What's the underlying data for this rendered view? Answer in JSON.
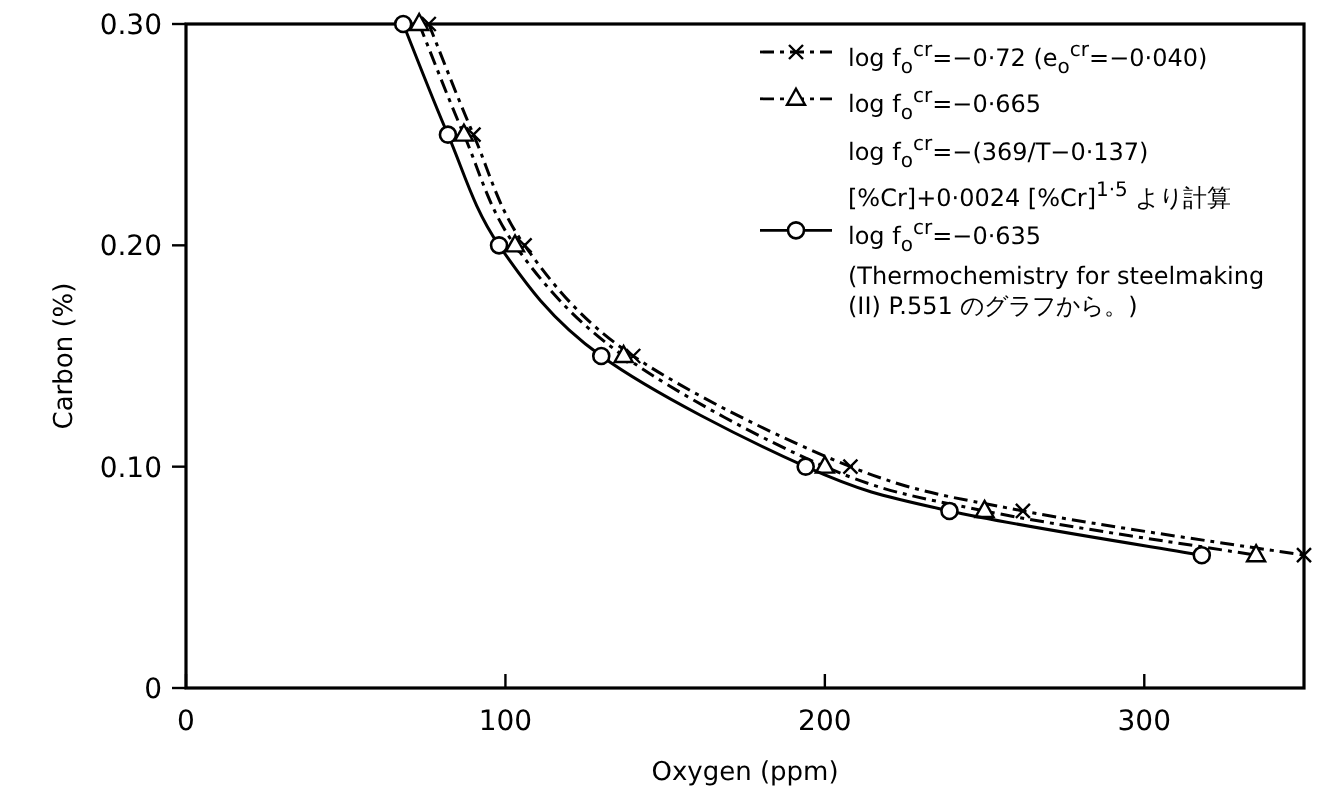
{
  "chart_data": {
    "type": "line",
    "xlabel": "Oxygen (ppm)",
    "ylabel": "Carbon (%)",
    "xlim": [
      0,
      350
    ],
    "ylim": [
      0,
      0.3
    ],
    "xticks": [
      0,
      100,
      200,
      300
    ],
    "yticks": [
      {
        "value": 0,
        "label": "0"
      },
      {
        "value": 0.1,
        "label": "0.10"
      },
      {
        "value": 0.2,
        "label": "0.20"
      },
      {
        "value": 0.3,
        "label": "0.30"
      }
    ],
    "legend": "top right",
    "grid": false,
    "series": [
      {
        "name": "log f$_{o}$$^{cr}$=−0·72 (e$_{o}$$^{cr}$=−0·040)",
        "color": "#000000",
        "marker": "cross",
        "line_style": "dashed",
        "x": [
          76,
          90,
          106,
          140,
          208,
          262,
          350
        ],
        "values": [
          0.3,
          0.25,
          0.2,
          0.15,
          0.1,
          0.08,
          0.06
        ]
      },
      {
        "name": "log f$_{o}$$^{cr}$=−0·665",
        "color": "#000000",
        "marker": "triangle",
        "line_style": "dashed",
        "x": [
          73,
          87,
          103,
          137,
          200,
          250,
          335
        ],
        "values": [
          0.3,
          0.25,
          0.2,
          0.15,
          0.1,
          0.08,
          0.06
        ]
      },
      {
        "name": "log f$_{o}$$^{cr}$=−0·635",
        "color": "#000000",
        "marker": "circle",
        "line_style": "solid",
        "x": [
          68,
          82,
          98,
          130,
          194,
          239,
          318
        ],
        "values": [
          0.3,
          0.25,
          0.2,
          0.15,
          0.1,
          0.08,
          0.06
        ]
      }
    ],
    "annotations": [
      "log f$_{o}$$^{cr}$=−(369/T−0·137)[%Cr]+0·0024 [%Cr]$^{1·5}$ より計算",
      "(Thermochemistry for steelmaking (II) P.551 のグラフから。)"
    ]
  }
}
